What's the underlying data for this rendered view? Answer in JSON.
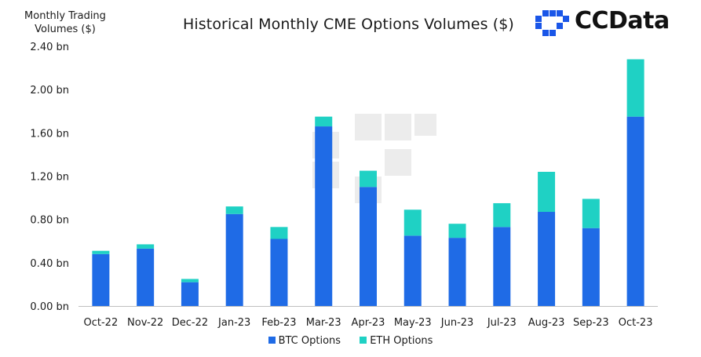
{
  "header": {
    "ylabel_line1": "Monthly Trading",
    "ylabel_line2": "Volumes ($)",
    "title": "Historical Monthly CME Options Volumes ($)",
    "logo_text": "CCData"
  },
  "colors": {
    "btc": "#1f6be6",
    "eth": "#1fd1c4",
    "logo_blue": "#1a56e8"
  },
  "chart_data": {
    "type": "bar",
    "stacked": true,
    "title": "Historical Monthly CME Options Volumes ($)",
    "ylabel": "Monthly Trading Volumes ($)",
    "ylim": [
      0,
      2.4
    ],
    "yticks": [
      0.0,
      0.4,
      0.8,
      1.2,
      1.6,
      2.0,
      2.4
    ],
    "ytick_labels": [
      "0.00 bn",
      "0.40 bn",
      "0.80 bn",
      "1.20 bn",
      "1.60 bn",
      "2.00 bn",
      "2.40 bn"
    ],
    "categories": [
      "Oct-22",
      "Nov-22",
      "Dec-22",
      "Jan-23",
      "Feb-23",
      "Mar-23",
      "Apr-23",
      "May-23",
      "Jun-23",
      "Jul-23",
      "Aug-23",
      "Sep-23",
      "Oct-23"
    ],
    "series": [
      {
        "name": "BTC Options",
        "color": "#1f6be6",
        "values": [
          0.48,
          0.53,
          0.22,
          0.85,
          0.62,
          1.66,
          1.1,
          0.65,
          0.63,
          0.73,
          0.87,
          0.72,
          1.75
        ]
      },
      {
        "name": "ETH Options",
        "color": "#1fd1c4",
        "values": [
          0.03,
          0.04,
          0.03,
          0.07,
          0.11,
          0.09,
          0.15,
          0.24,
          0.13,
          0.22,
          0.37,
          0.27,
          0.53
        ]
      }
    ],
    "legend_position": "bottom",
    "grid": false
  }
}
